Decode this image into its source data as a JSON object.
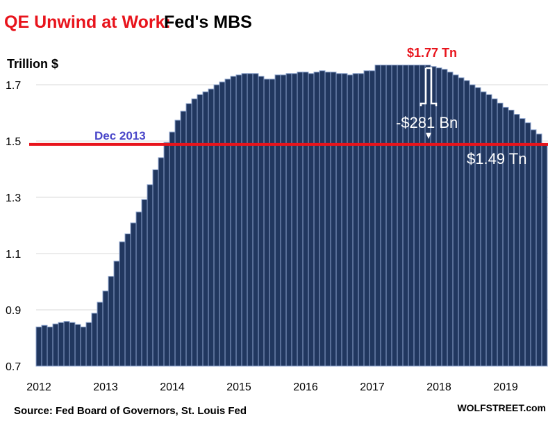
{
  "chart_data": {
    "type": "bar",
    "title_highlight": "QE Unwind at Work:",
    "title": "Fed's MBS",
    "ylabel": "Trillion $",
    "xlabel": "",
    "ylim": [
      0.7,
      1.8
    ],
    "yticks": [
      "0.7",
      "0.9",
      "1.1",
      "1.3",
      "1.5",
      "1.7"
    ],
    "ytick_values": [
      0.7,
      0.9,
      1.1,
      1.3,
      1.5,
      1.7
    ],
    "xticks": [
      "2012",
      "2013",
      "2014",
      "2015",
      "2016",
      "2017",
      "2018",
      "2019"
    ],
    "grid": true,
    "frequency": "monthly, Jan 2012 - Aug 2019",
    "values": [
      0.839,
      0.845,
      0.839,
      0.85,
      0.855,
      0.859,
      0.855,
      0.848,
      0.839,
      0.855,
      0.888,
      0.927,
      0.967,
      1.019,
      1.073,
      1.142,
      1.17,
      1.209,
      1.248,
      1.292,
      1.345,
      1.398,
      1.441,
      1.495,
      1.532,
      1.574,
      1.606,
      1.633,
      1.65,
      1.665,
      1.675,
      1.685,
      1.7,
      1.71,
      1.72,
      1.73,
      1.735,
      1.74,
      1.74,
      1.74,
      1.73,
      1.72,
      1.72,
      1.735,
      1.735,
      1.74,
      1.74,
      1.745,
      1.745,
      1.74,
      1.745,
      1.75,
      1.745,
      1.745,
      1.74,
      1.74,
      1.735,
      1.74,
      1.74,
      1.75,
      1.75,
      1.77,
      1.77,
      1.77,
      1.77,
      1.77,
      1.77,
      1.77,
      1.77,
      1.77,
      1.77,
      1.765,
      1.76,
      1.755,
      1.745,
      1.735,
      1.725,
      1.715,
      1.7,
      1.69,
      1.675,
      1.665,
      1.65,
      1.635,
      1.62,
      1.61,
      1.595,
      1.58,
      1.565,
      1.54,
      1.525,
      1.49
    ],
    "reference_line": {
      "value": 1.488,
      "label": "Dec 2013"
    },
    "annotations": {
      "peak": "$1.77 Tn",
      "drop": "-$281 Bn",
      "latest": "$1.49 Tn"
    },
    "source": "Source: Fed Board of Governors, St. Louis Fed",
    "watermark": "WOLFSTREET.com",
    "colors": {
      "bar": "#21375f",
      "bar_edge": "#8fa6cf",
      "title_red": "#e8141c",
      "ref_line": "#e8141c",
      "ref_label": "#4a47c9",
      "grid": "#d9d9d9"
    }
  }
}
